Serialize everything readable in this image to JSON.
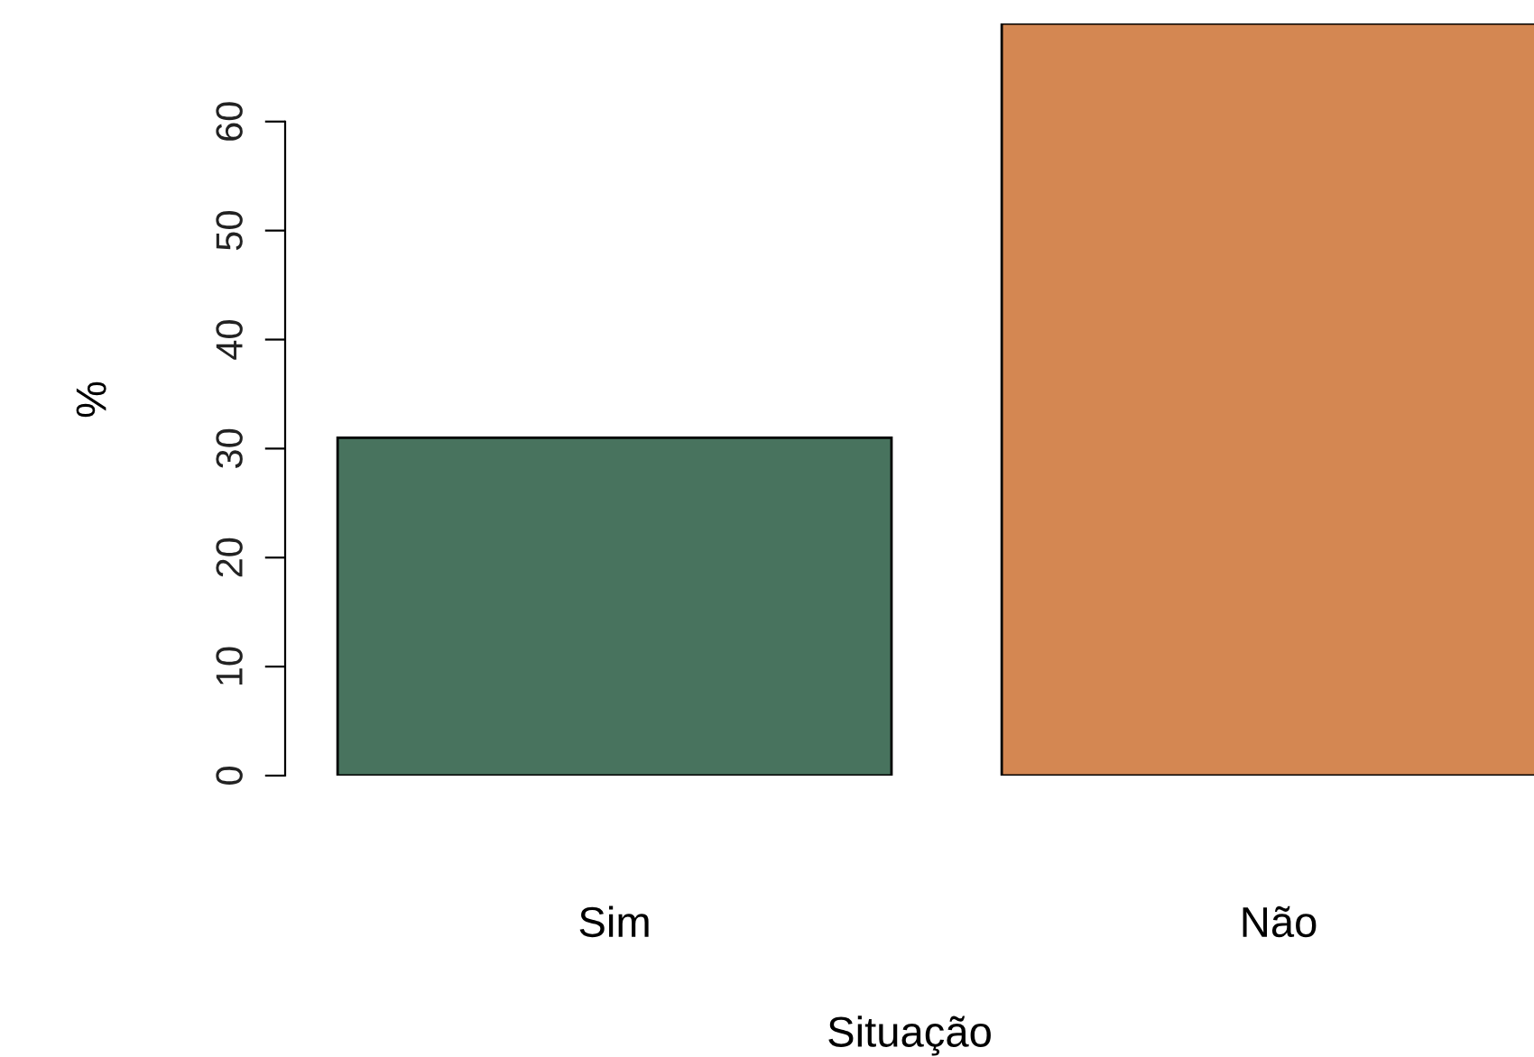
{
  "chart_data": {
    "type": "bar",
    "xlabel": "Situação",
    "ylabel": "%",
    "categories": [
      "Sim",
      "Não"
    ],
    "values": [
      31,
      69
    ],
    "colors": [
      "#48735e",
      "#d48752"
    ],
    "ylim": [
      0,
      69
    ],
    "yticks": [
      0,
      10,
      20,
      30,
      40,
      50,
      60
    ],
    "grid": false,
    "legend": false
  }
}
